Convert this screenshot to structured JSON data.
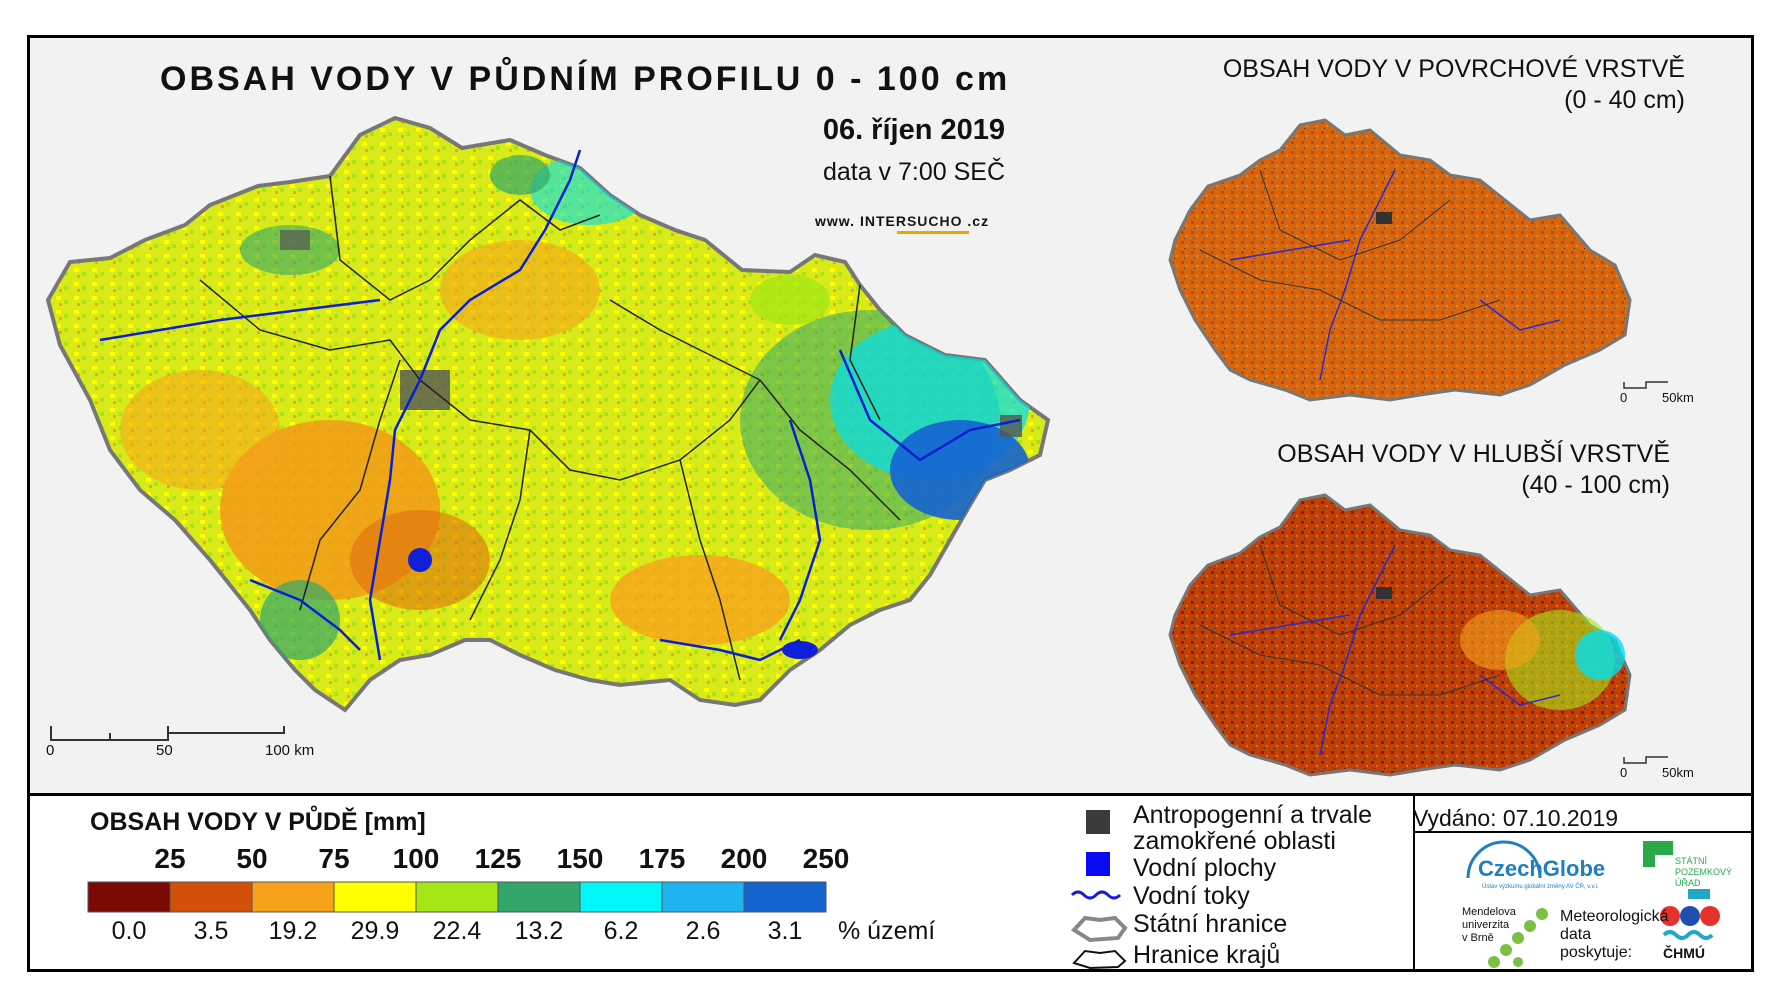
{
  "main_title": "OBSAH VODY V PŮDNÍM PROFILU 0 - 100 cm",
  "date": "06. říjen 2019",
  "data_time": "data v 7:00 SEČ",
  "website": {
    "prefix": "www.",
    "name_a": "INTER",
    "name_b": "SUCHO",
    "suffix": ".cz"
  },
  "inset_top": {
    "title": "OBSAH VODY V POVRCHOVÉ VRSTVĚ",
    "depth": "(0 - 40 cm)"
  },
  "inset_bottom": {
    "title": "OBSAH VODY V HLUBŠÍ VRSTVĚ",
    "depth": "(40 - 100 cm)"
  },
  "main_scalebar": {
    "labels": [
      "0",
      "50",
      "100 km"
    ]
  },
  "inset_scalebar": {
    "labels": [
      "0",
      "50km"
    ]
  },
  "legend": {
    "title": "OBSAH VODY V PŮDĚ [mm]",
    "thresholds": [
      "25",
      "50",
      "75",
      "100",
      "125",
      "150",
      "175",
      "200",
      "250"
    ],
    "classes": [
      {
        "color": "#7a0a02",
        "percent": "0.0"
      },
      {
        "color": "#d4500a",
        "percent": "3.5"
      },
      {
        "color": "#f7a21a",
        "percent": "19.2"
      },
      {
        "color": "#ffff00",
        "percent": "29.9"
      },
      {
        "color": "#a6e617",
        "percent": "22.4"
      },
      {
        "color": "#33a66b",
        "percent": "13.2"
      },
      {
        "color": "#00f7f7",
        "percent": "6.2"
      },
      {
        "color": "#1fb3f2",
        "percent": "2.6"
      },
      {
        "color": "#1463d1",
        "percent": "3.1"
      }
    ],
    "percent_unit": "% území"
  },
  "symbols": {
    "anthropogenic_line1": "Antropogenní a trvale",
    "anthropogenic_line2": "zamokřené oblasti",
    "water_bodies": "Vodní plochy",
    "rivers": "Vodní toky",
    "state_border": "Státní hranice",
    "regional_border": "Hranice krajů"
  },
  "issued": "Vydáno: 07.10.2019",
  "organizations": {
    "czechglobe": "CzechGlobe",
    "czechglobe_sub": "Ústav výzkumu globální změny AV ČR, v.v.i.",
    "spu": [
      "STÁTNÍ",
      "POZEMKOVÝ",
      "ÚŘAD"
    ],
    "mendelu": [
      "Mendelova",
      "univerzita",
      "v Brně"
    ],
    "provider_text": [
      "Meteorologická",
      "data",
      "poskytuje:"
    ],
    "chmu": "ČHMÚ"
  }
}
